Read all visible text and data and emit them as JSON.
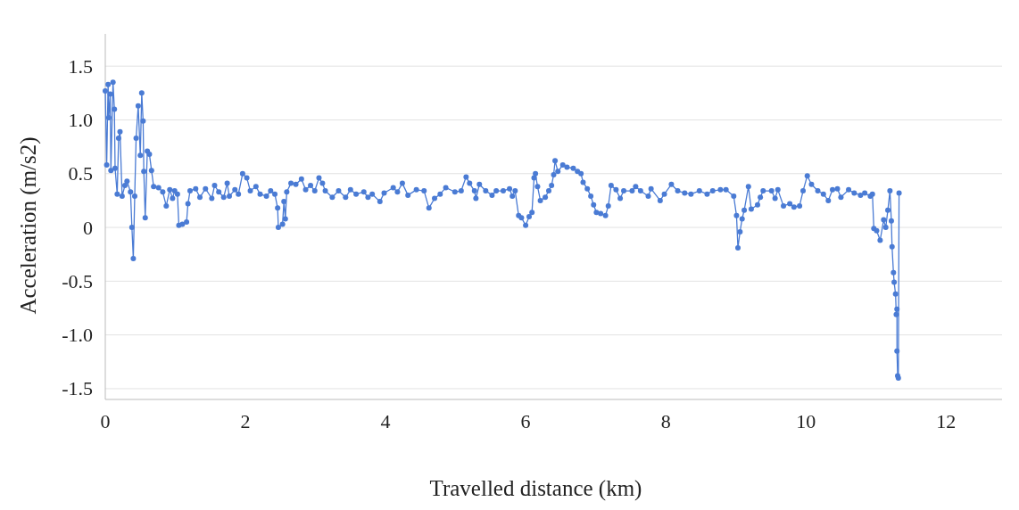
{
  "chart_data": {
    "type": "line",
    "xlabel": "Travelled distance (km)",
    "ylabel": "Acceleration (m/s2)",
    "xlim": [
      0,
      12.8
    ],
    "xticks": [
      0,
      2,
      4,
      6,
      8,
      10,
      12
    ],
    "ylim": [
      -1.6,
      1.8
    ],
    "yticks": [
      {
        "value": -1.5,
        "label": "-1.5"
      },
      {
        "value": -1,
        "label": "-1.0"
      },
      {
        "value": -0.5,
        "label": "-0.5"
      },
      0,
      {
        "value": 0.5,
        "label": "0.5"
      },
      {
        "value": 1,
        "label": "1.0"
      },
      {
        "value": 1.5,
        "label": "1.5"
      }
    ],
    "grid": "y",
    "marker": "circle",
    "line_style": "solid",
    "series": [
      {
        "color": "#4a7bd4",
        "x": [
          0,
          0.02,
          0.04,
          0.05,
          0.07,
          0.08,
          0.11,
          0.13,
          0.14,
          0.17,
          0.19,
          0.21,
          0.24,
          0.28,
          0.31,
          0.36,
          0.38,
          0.4,
          0.42,
          0.44,
          0.47,
          0.5,
          0.52,
          0.54,
          0.55,
          0.57,
          0.6,
          0.63,
          0.66,
          0.69,
          0.76,
          0.82,
          0.87,
          0.92,
          0.96,
          0.99,
          1.03,
          1.05,
          1.1,
          1.16,
          1.18,
          1.21,
          1.29,
          1.35,
          1.43,
          1.52,
          1.56,
          1.62,
          1.69,
          1.74,
          1.77,
          1.85,
          1.9,
          1.96,
          2.02,
          2.07,
          2.15,
          2.21,
          2.3,
          2.36,
          2.42,
          2.46,
          2.47,
          2.53,
          2.55,
          2.57,
          2.59,
          2.65,
          2.72,
          2.8,
          2.86,
          2.93,
          2.99,
          3.05,
          3.1,
          3.14,
          3.24,
          3.33,
          3.43,
          3.5,
          3.58,
          3.69,
          3.75,
          3.81,
          3.92,
          3.98,
          4.11,
          4.17,
          4.24,
          4.32,
          4.44,
          4.55,
          4.62,
          4.7,
          4.78,
          4.86,
          4.99,
          5.08,
          5.15,
          5.2,
          5.27,
          5.29,
          5.34,
          5.43,
          5.52,
          5.58,
          5.68,
          5.77,
          5.81,
          5.85,
          5.9,
          5.94,
          6,
          6.05,
          6.09,
          6.12,
          6.14,
          6.17,
          6.21,
          6.28,
          6.33,
          6.37,
          6.4,
          6.42,
          6.46,
          6.53,
          6.59,
          6.68,
          6.74,
          6.79,
          6.82,
          6.88,
          6.93,
          6.97,
          7.01,
          7.07,
          7.14,
          7.18,
          7.22,
          7.29,
          7.35,
          7.4,
          7.52,
          7.57,
          7.64,
          7.75,
          7.79,
          7.92,
          7.98,
          8.08,
          8.17,
          8.27,
          8.36,
          8.48,
          8.59,
          8.67,
          8.78,
          8.86,
          8.97,
          9.01,
          9.03,
          9.06,
          9.09,
          9.12,
          9.18,
          9.22,
          9.31,
          9.35,
          9.39,
          9.51,
          9.56,
          9.6,
          9.68,
          9.77,
          9.83,
          9.91,
          9.96,
          10.02,
          10.08,
          10.17,
          10.25,
          10.32,
          10.38,
          10.45,
          10.5,
          10.61,
          10.69,
          10.78,
          10.84,
          10.92,
          10.95,
          10.97,
          11.01,
          11.06,
          11.11,
          11.14,
          11.17,
          11.2,
          11.22,
          11.23,
          11.25,
          11.26,
          11.28,
          11.29,
          11.3,
          11.3,
          11.31,
          11.32,
          11.33
        ],
        "values": [
          1.27,
          0.58,
          1.33,
          1.02,
          1.24,
          0.53,
          1.35,
          1.1,
          0.55,
          0.31,
          0.83,
          0.89,
          0.29,
          0.39,
          0.43,
          0.33,
          0,
          -0.29,
          0.29,
          0.83,
          1.13,
          0.67,
          1.25,
          0.99,
          0.52,
          0.09,
          0.71,
          0.68,
          0.53,
          0.38,
          0.37,
          0.33,
          0.2,
          0.35,
          0.27,
          0.34,
          0.31,
          0.02,
          0.03,
          0.05,
          0.22,
          0.34,
          0.36,
          0.28,
          0.36,
          0.27,
          0.39,
          0.33,
          0.28,
          0.41,
          0.29,
          0.35,
          0.31,
          0.5,
          0.46,
          0.34,
          0.38,
          0.31,
          0.29,
          0.34,
          0.31,
          0.18,
          0,
          0.03,
          0.24,
          0.08,
          0.33,
          0.41,
          0.4,
          0.45,
          0.35,
          0.39,
          0.34,
          0.46,
          0.41,
          0.34,
          0.28,
          0.34,
          0.28,
          0.35,
          0.31,
          0.33,
          0.28,
          0.31,
          0.24,
          0.32,
          0.37,
          0.33,
          0.41,
          0.3,
          0.35,
          0.34,
          0.18,
          0.27,
          0.31,
          0.37,
          0.33,
          0.34,
          0.47,
          0.41,
          0.34,
          0.27,
          0.4,
          0.34,
          0.3,
          0.34,
          0.34,
          0.36,
          0.29,
          0.34,
          0.11,
          0.09,
          0.02,
          0.1,
          0.14,
          0.46,
          0.5,
          0.38,
          0.25,
          0.28,
          0.34,
          0.39,
          0.49,
          0.62,
          0.52,
          0.58,
          0.56,
          0.55,
          0.52,
          0.5,
          0.42,
          0.36,
          0.29,
          0.21,
          0.14,
          0.13,
          0.11,
          0.2,
          0.39,
          0.35,
          0.27,
          0.34,
          0.34,
          0.38,
          0.34,
          0.29,
          0.36,
          0.25,
          0.31,
          0.4,
          0.34,
          0.32,
          0.31,
          0.34,
          0.31,
          0.34,
          0.35,
          0.35,
          0.29,
          0.11,
          -0.19,
          -0.04,
          0.08,
          0.16,
          0.38,
          0.17,
          0.21,
          0.28,
          0.34,
          0.34,
          0.27,
          0.35,
          0.2,
          0.22,
          0.19,
          0.2,
          0.34,
          0.48,
          0.4,
          0.34,
          0.31,
          0.25,
          0.35,
          0.36,
          0.28,
          0.35,
          0.32,
          0.3,
          0.32,
          0.29,
          0.31,
          -0.01,
          -0.03,
          -0.12,
          0.07,
          0,
          0.16,
          0.34,
          0.06,
          -0.18,
          -0.42,
          -0.51,
          -0.62,
          -0.81,
          -0.76,
          -1.15,
          -1.38,
          -1.4,
          0.32
        ]
      }
    ]
  }
}
